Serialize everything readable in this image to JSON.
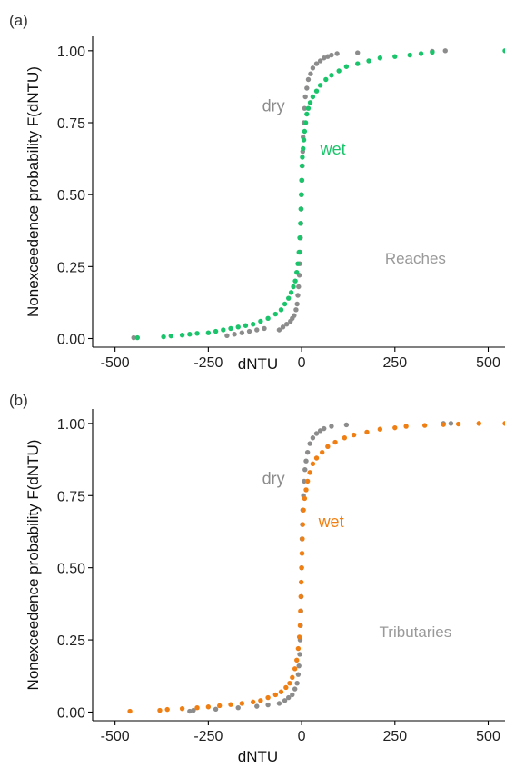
{
  "chart_data": [
    {
      "type": "scatter",
      "panel_label": "(a)",
      "annotation": "Reaches",
      "annotation_color": "#999999",
      "xlabel": "dNTU",
      "ylabel": "Nonexceedence probability F(dNTU)",
      "xlim": [
        -560,
        545
      ],
      "ylim": [
        -0.03,
        1.05
      ],
      "xticks": [
        -500,
        -250,
        0,
        250,
        500
      ],
      "xtick_labels": [
        "-500",
        "-250",
        "0",
        "250",
        "500"
      ],
      "yticks": [
        0,
        0.25,
        0.5,
        0.75,
        1.0
      ],
      "ytick_labels": [
        "0.00",
        "0.25",
        "0.50",
        "0.75",
        "1.00"
      ],
      "grid": false,
      "series": [
        {
          "name": "dry",
          "color": "#8c8c8c",
          "label_pos": {
            "x": -45,
            "y": 0.79
          },
          "points": [
            [
              -450,
              0.003
            ],
            [
              -200,
              0.01
            ],
            [
              -180,
              0.015
            ],
            [
              -160,
              0.02
            ],
            [
              -140,
              0.025
            ],
            [
              -120,
              0.03
            ],
            [
              -100,
              0.035
            ],
            [
              -60,
              0.03
            ],
            [
              -50,
              0.04
            ],
            [
              -40,
              0.05
            ],
            [
              -30,
              0.06
            ],
            [
              -25,
              0.07
            ],
            [
              -20,
              0.08
            ],
            [
              -15,
              0.1
            ],
            [
              -12,
              0.12
            ],
            [
              -10,
              0.15
            ],
            [
              -8,
              0.18
            ],
            [
              -6,
              0.22
            ],
            [
              -5,
              0.26
            ],
            [
              -4,
              0.3
            ],
            [
              -3,
              0.35
            ],
            [
              -2,
              0.4
            ],
            [
              -1,
              0.45
            ],
            [
              0,
              0.5
            ],
            [
              1,
              0.55
            ],
            [
              2,
              0.6
            ],
            [
              3,
              0.65
            ],
            [
              4,
              0.7
            ],
            [
              6,
              0.75
            ],
            [
              8,
              0.8
            ],
            [
              10,
              0.84
            ],
            [
              14,
              0.87
            ],
            [
              18,
              0.9
            ],
            [
              24,
              0.92
            ],
            [
              30,
              0.94
            ],
            [
              40,
              0.955
            ],
            [
              50,
              0.965
            ],
            [
              60,
              0.975
            ],
            [
              70,
              0.98
            ],
            [
              80,
              0.985
            ],
            [
              95,
              0.99
            ],
            [
              150,
              0.993
            ],
            [
              350,
              0.998
            ],
            [
              385,
              1.0
            ]
          ]
        },
        {
          "name": "wet",
          "color": "#1ac46a",
          "label_pos": {
            "x": 50,
            "y": 0.64
          },
          "points": [
            [
              -440,
              0.003
            ],
            [
              -370,
              0.006
            ],
            [
              -350,
              0.009
            ],
            [
              -320,
              0.012
            ],
            [
              -300,
              0.015
            ],
            [
              -280,
              0.018
            ],
            [
              -250,
              0.02
            ],
            [
              -230,
              0.025
            ],
            [
              -210,
              0.03
            ],
            [
              -190,
              0.035
            ],
            [
              -170,
              0.04
            ],
            [
              -150,
              0.045
            ],
            [
              -130,
              0.05
            ],
            [
              -110,
              0.06
            ],
            [
              -90,
              0.07
            ],
            [
              -70,
              0.085
            ],
            [
              -55,
              0.1
            ],
            [
              -45,
              0.12
            ],
            [
              -35,
              0.14
            ],
            [
              -28,
              0.16
            ],
            [
              -22,
              0.18
            ],
            [
              -17,
              0.2
            ],
            [
              -13,
              0.23
            ],
            [
              -10,
              0.26
            ],
            [
              -7,
              0.3
            ],
            [
              -5,
              0.35
            ],
            [
              -3,
              0.4
            ],
            [
              -2,
              0.45
            ],
            [
              -1,
              0.5
            ],
            [
              0,
              0.55
            ],
            [
              1,
              0.6
            ],
            [
              2,
              0.63
            ],
            [
              4,
              0.66
            ],
            [
              6,
              0.69
            ],
            [
              8,
              0.72
            ],
            [
              11,
              0.75
            ],
            [
              14,
              0.78
            ],
            [
              18,
              0.8
            ],
            [
              23,
              0.82
            ],
            [
              30,
              0.84
            ],
            [
              40,
              0.86
            ],
            [
              50,
              0.88
            ],
            [
              65,
              0.9
            ],
            [
              80,
              0.915
            ],
            [
              100,
              0.93
            ],
            [
              120,
              0.945
            ],
            [
              150,
              0.955
            ],
            [
              180,
              0.965
            ],
            [
              210,
              0.975
            ],
            [
              250,
              0.98
            ],
            [
              290,
              0.985
            ],
            [
              320,
              0.99
            ],
            [
              350,
              0.995
            ],
            [
              545,
              1.0
            ]
          ]
        }
      ]
    },
    {
      "type": "scatter",
      "panel_label": "(b)",
      "annotation": "Tributaries",
      "annotation_color": "#999999",
      "xlabel": "dNTU",
      "ylabel": "Nonexceedence probability F(dNTU)",
      "xlim": [
        -560,
        545
      ],
      "ylim": [
        -0.03,
        1.05
      ],
      "xticks": [
        -500,
        -250,
        0,
        250,
        500
      ],
      "xtick_labels": [
        "-500",
        "-250",
        "0",
        "250",
        "500"
      ],
      "yticks": [
        0,
        0.25,
        0.5,
        0.75,
        1.0
      ],
      "ytick_labels": [
        "0.00",
        "0.25",
        "0.50",
        "0.75",
        "1.00"
      ],
      "grid": false,
      "series": [
        {
          "name": "dry",
          "color": "#8c8c8c",
          "label_pos": {
            "x": -45,
            "y": 0.79
          },
          "points": [
            [
              -300,
              0.003
            ],
            [
              -290,
              0.006
            ],
            [
              -230,
              0.01
            ],
            [
              -170,
              0.015
            ],
            [
              -120,
              0.02
            ],
            [
              -90,
              0.025
            ],
            [
              -60,
              0.03
            ],
            [
              -45,
              0.04
            ],
            [
              -35,
              0.05
            ],
            [
              -25,
              0.06
            ],
            [
              -18,
              0.08
            ],
            [
              -12,
              0.1
            ],
            [
              -9,
              0.13
            ],
            [
              -7,
              0.16
            ],
            [
              -5,
              0.2
            ],
            [
              -4,
              0.25
            ],
            [
              -3,
              0.3
            ],
            [
              -2,
              0.35
            ],
            [
              -1,
              0.4
            ],
            [
              0,
              0.5
            ],
            [
              1,
              0.6
            ],
            [
              2,
              0.65
            ],
            [
              3,
              0.7
            ],
            [
              5,
              0.75
            ],
            [
              7,
              0.8
            ],
            [
              9,
              0.84
            ],
            [
              12,
              0.87
            ],
            [
              16,
              0.9
            ],
            [
              22,
              0.93
            ],
            [
              30,
              0.95
            ],
            [
              40,
              0.965
            ],
            [
              50,
              0.975
            ],
            [
              60,
              0.982
            ],
            [
              80,
              0.99
            ],
            [
              120,
              0.995
            ],
            [
              380,
              1.0
            ],
            [
              400,
              1.0
            ]
          ]
        },
        {
          "name": "wet",
          "color": "#f07f13",
          "label_pos": {
            "x": 45,
            "y": 0.64
          },
          "points": [
            [
              -460,
              0.003
            ],
            [
              -380,
              0.006
            ],
            [
              -360,
              0.009
            ],
            [
              -320,
              0.012
            ],
            [
              -280,
              0.015
            ],
            [
              -250,
              0.018
            ],
            [
              -220,
              0.022
            ],
            [
              -190,
              0.026
            ],
            [
              -160,
              0.03
            ],
            [
              -130,
              0.035
            ],
            [
              -110,
              0.04
            ],
            [
              -90,
              0.05
            ],
            [
              -70,
              0.06
            ],
            [
              -55,
              0.07
            ],
            [
              -42,
              0.085
            ],
            [
              -32,
              0.1
            ],
            [
              -25,
              0.12
            ],
            [
              -18,
              0.15
            ],
            [
              -13,
              0.18
            ],
            [
              -9,
              0.22
            ],
            [
              -6,
              0.26
            ],
            [
              -4,
              0.3
            ],
            [
              -3,
              0.35
            ],
            [
              -2,
              0.4
            ],
            [
              -1,
              0.45
            ],
            [
              0,
              0.5
            ],
            [
              1,
              0.55
            ],
            [
              2,
              0.6
            ],
            [
              3,
              0.65
            ],
            [
              5,
              0.7
            ],
            [
              8,
              0.74
            ],
            [
              12,
              0.77
            ],
            [
              16,
              0.8
            ],
            [
              22,
              0.83
            ],
            [
              30,
              0.86
            ],
            [
              40,
              0.88
            ],
            [
              55,
              0.9
            ],
            [
              70,
              0.92
            ],
            [
              90,
              0.935
            ],
            [
              115,
              0.95
            ],
            [
              140,
              0.96
            ],
            [
              175,
              0.97
            ],
            [
              210,
              0.98
            ],
            [
              250,
              0.985
            ],
            [
              280,
              0.99
            ],
            [
              330,
              0.993
            ],
            [
              380,
              0.996
            ],
            [
              420,
              0.998
            ],
            [
              475,
              1.0
            ],
            [
              545,
              1.0
            ]
          ]
        }
      ]
    }
  ]
}
